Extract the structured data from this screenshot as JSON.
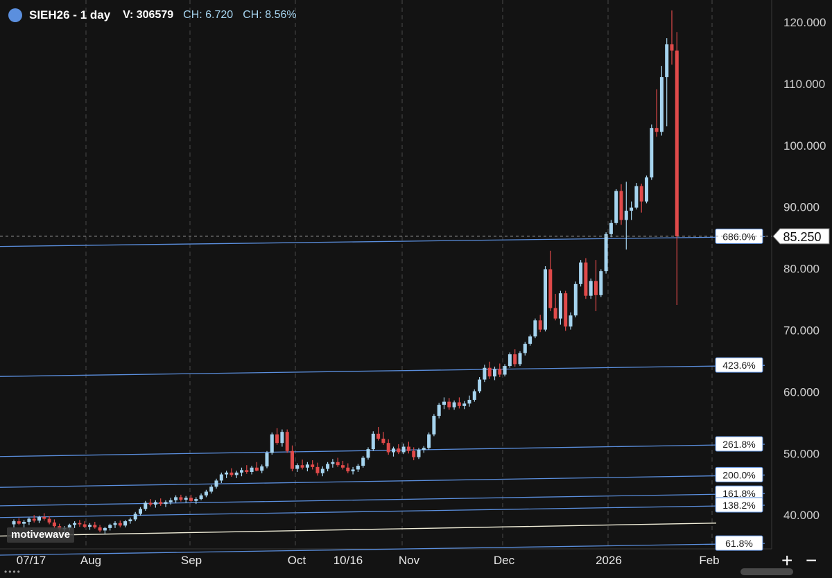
{
  "header": {
    "symbol": "SIEH26 - 1 day",
    "volume_label": "V:",
    "volume_value": "306579",
    "change_label": "CH:",
    "change_value": "6.720",
    "change_pct_label": "CH:",
    "change_pct_value": "8.56%"
  },
  "watermark": "motivewave",
  "zoom": {
    "plus": "+",
    "minus": "−"
  },
  "colors": {
    "background": "#131313",
    "up_candle": "#a6d4ef",
    "down_candle": "#e04a4a",
    "fib_line": "#5b8fde",
    "base_line": "#f1eed9",
    "grid": "#4a4a4a"
  },
  "chart_data": {
    "type": "candlestick",
    "title": "SIEH26 - 1 day",
    "y_axis": {
      "min": 34,
      "max": 123,
      "ticks": [
        "120.000",
        "110.000",
        "100.000",
        "90.000",
        "80.000",
        "70.000",
        "60.000",
        "50.000",
        "40.000"
      ],
      "position": "right"
    },
    "x_axis": {
      "ticks": [
        "07/17",
        "Aug",
        "Sep",
        "Oct",
        "10/16",
        "Nov",
        "Dec",
        "2026",
        "Feb"
      ]
    },
    "grid": true,
    "last_price": "85.250",
    "fib_levels": [
      {
        "label": "686.0%",
        "y_start": 83.6,
        "y_end": 85.2
      },
      {
        "label": "423.6%",
        "y_start": 62.5,
        "y_end": 64.3
      },
      {
        "label": "261.8%",
        "y_start": 49.5,
        "y_end": 51.5
      },
      {
        "label": "200.0%",
        "y_start": 44.5,
        "y_end": 46.5
      },
      {
        "label": "161.8%",
        "y_start": 41.5,
        "y_end": 43.5
      },
      {
        "label": "138.2%",
        "y_start": 39.6,
        "y_end": 41.6
      },
      {
        "label": "61.8%",
        "y_start": 33.5,
        "y_end": 35.4
      }
    ],
    "base_line": {
      "y_start": 36.6,
      "y_end": 38.7
    },
    "candles": [
      [
        38.5,
        39.3,
        38.0,
        39.0
      ],
      [
        39.0,
        39.5,
        38.4,
        38.6
      ],
      [
        38.6,
        39.2,
        38.0,
        38.9
      ],
      [
        38.9,
        39.6,
        38.4,
        39.4
      ],
      [
        39.4,
        40.0,
        38.8,
        39.1
      ],
      [
        39.1,
        39.9,
        38.7,
        39.7
      ],
      [
        39.7,
        40.3,
        39.1,
        39.4
      ],
      [
        39.4,
        39.8,
        38.5,
        38.8
      ],
      [
        38.8,
        39.3,
        37.9,
        38.2
      ],
      [
        38.2,
        38.6,
        37.4,
        37.7
      ],
      [
        37.7,
        38.2,
        37.1,
        37.9
      ],
      [
        37.9,
        38.6,
        37.5,
        38.4
      ],
      [
        38.4,
        39.0,
        37.9,
        38.7
      ],
      [
        38.7,
        39.2,
        38.1,
        38.5
      ],
      [
        38.5,
        39.0,
        37.9,
        38.1
      ],
      [
        38.1,
        38.7,
        37.6,
        38.4
      ],
      [
        38.4,
        38.9,
        37.8,
        38.0
      ],
      [
        38.0,
        38.4,
        37.2,
        37.5
      ],
      [
        37.5,
        38.1,
        37.0,
        37.9
      ],
      [
        37.9,
        38.6,
        37.5,
        38.4
      ],
      [
        38.4,
        39.0,
        37.9,
        38.7
      ],
      [
        38.7,
        39.1,
        38.0,
        38.3
      ],
      [
        38.3,
        39.2,
        38.0,
        39.0
      ],
      [
        39.0,
        39.6,
        38.6,
        39.3
      ],
      [
        39.3,
        40.5,
        39.0,
        40.2
      ],
      [
        40.2,
        41.3,
        39.9,
        41.0
      ],
      [
        41.0,
        42.3,
        40.7,
        42.0
      ],
      [
        42.0,
        42.6,
        41.4,
        41.7
      ],
      [
        41.7,
        42.4,
        41.2,
        42.1
      ],
      [
        42.1,
        42.7,
        41.5,
        41.8
      ],
      [
        41.8,
        42.4,
        41.3,
        42.1
      ],
      [
        42.1,
        42.8,
        41.7,
        42.4
      ],
      [
        42.4,
        43.2,
        42.0,
        42.9
      ],
      [
        42.9,
        43.3,
        42.2,
        42.5
      ],
      [
        42.5,
        43.1,
        42.0,
        42.8
      ],
      [
        42.8,
        43.3,
        42.1,
        42.3
      ],
      [
        42.3,
        42.9,
        41.8,
        42.6
      ],
      [
        42.6,
        43.5,
        42.4,
        43.2
      ],
      [
        43.2,
        44.1,
        42.9,
        43.8
      ],
      [
        43.8,
        44.9,
        43.5,
        44.6
      ],
      [
        44.6,
        45.9,
        44.3,
        45.6
      ],
      [
        45.6,
        46.9,
        45.2,
        46.6
      ],
      [
        46.6,
        47.2,
        46.0,
        46.9
      ],
      [
        46.9,
        47.6,
        46.2,
        46.5
      ],
      [
        46.5,
        47.2,
        46.0,
        46.9
      ],
      [
        46.9,
        47.7,
        46.3,
        47.3
      ],
      [
        47.3,
        48.1,
        46.7,
        47.0
      ],
      [
        47.0,
        48.0,
        46.6,
        47.7
      ],
      [
        47.7,
        48.6,
        47.1,
        47.2
      ],
      [
        47.2,
        48.2,
        46.8,
        47.9
      ],
      [
        47.9,
        50.4,
        47.6,
        50.1
      ],
      [
        50.1,
        53.4,
        49.8,
        53.1
      ],
      [
        53.1,
        54.1,
        51.4,
        51.7
      ],
      [
        51.7,
        53.9,
        51.1,
        53.5
      ],
      [
        53.5,
        53.9,
        50.1,
        50.4
      ],
      [
        50.4,
        51.3,
        47.1,
        47.5
      ],
      [
        47.5,
        48.4,
        47.0,
        48.1
      ],
      [
        48.1,
        49.0,
        47.4,
        47.7
      ],
      [
        47.7,
        48.6,
        47.1,
        48.2
      ],
      [
        48.2,
        48.9,
        47.4,
        47.8
      ],
      [
        47.8,
        48.5,
        46.4,
        46.8
      ],
      [
        46.8,
        47.9,
        46.3,
        47.5
      ],
      [
        47.5,
        48.6,
        47.1,
        48.3
      ],
      [
        48.3,
        49.1,
        47.7,
        48.6
      ],
      [
        48.6,
        49.3,
        47.8,
        48.1
      ],
      [
        48.1,
        48.8,
        47.4,
        47.7
      ],
      [
        47.7,
        48.4,
        46.8,
        47.1
      ],
      [
        47.1,
        47.8,
        46.6,
        47.4
      ],
      [
        47.4,
        48.3,
        47.0,
        48.0
      ],
      [
        48.0,
        49.6,
        47.7,
        49.3
      ],
      [
        49.3,
        51.0,
        49.0,
        50.7
      ],
      [
        50.7,
        53.6,
        50.4,
        53.2
      ],
      [
        53.2,
        54.3,
        52.1,
        52.4
      ],
      [
        52.4,
        53.5,
        51.4,
        51.7
      ],
      [
        51.7,
        52.3,
        49.8,
        50.2
      ],
      [
        50.2,
        51.1,
        49.5,
        50.8
      ],
      [
        50.8,
        51.5,
        49.9,
        50.2
      ],
      [
        50.2,
        51.6,
        49.9,
        51.1
      ],
      [
        51.1,
        51.9,
        50.0,
        50.4
      ],
      [
        50.4,
        51.0,
        48.9,
        49.4
      ],
      [
        49.4,
        50.9,
        49.1,
        50.6
      ],
      [
        50.6,
        51.2,
        50.1,
        50.9
      ],
      [
        50.9,
        53.4,
        50.6,
        53.1
      ],
      [
        53.1,
        56.4,
        52.8,
        56.1
      ],
      [
        56.1,
        58.2,
        55.7,
        57.9
      ],
      [
        57.9,
        59.1,
        57.2,
        58.4
      ],
      [
        58.4,
        59.0,
        57.1,
        57.5
      ],
      [
        57.5,
        58.6,
        57.1,
        58.3
      ],
      [
        58.3,
        59.1,
        57.3,
        57.7
      ],
      [
        57.7,
        58.5,
        57.2,
        58.1
      ],
      [
        58.1,
        59.4,
        57.6,
        58.7
      ],
      [
        58.7,
        60.4,
        58.4,
        60.1
      ],
      [
        60.1,
        62.4,
        59.8,
        62.0
      ],
      [
        62.0,
        64.4,
        61.6,
        63.9
      ],
      [
        63.9,
        64.9,
        62.1,
        62.5
      ],
      [
        62.5,
        64.1,
        61.9,
        63.7
      ],
      [
        63.7,
        64.6,
        62.4,
        62.8
      ],
      [
        62.8,
        64.5,
        62.5,
        64.2
      ],
      [
        64.2,
        66.4,
        63.9,
        66.1
      ],
      [
        66.1,
        66.9,
        64.1,
        64.5
      ],
      [
        64.5,
        66.6,
        64.2,
        66.3
      ],
      [
        66.3,
        68.1,
        65.9,
        67.8
      ],
      [
        67.8,
        69.3,
        67.5,
        69.0
      ],
      [
        69.0,
        71.9,
        68.7,
        71.6
      ],
      [
        71.6,
        72.5,
        69.7,
        70.1
      ],
      [
        70.1,
        80.4,
        69.8,
        79.9
      ],
      [
        79.9,
        82.9,
        73.1,
        73.6
      ],
      [
        73.6,
        75.9,
        71.6,
        71.9
      ],
      [
        71.9,
        76.4,
        70.9,
        76.0
      ],
      [
        76.0,
        76.4,
        69.9,
        70.6
      ],
      [
        70.6,
        72.9,
        70.1,
        72.4
      ],
      [
        72.4,
        77.9,
        72.1,
        77.5
      ],
      [
        77.5,
        81.4,
        77.1,
        81.0
      ],
      [
        81.0,
        81.7,
        75.1,
        75.6
      ],
      [
        75.6,
        78.4,
        75.1,
        78.0
      ],
      [
        78.0,
        81.4,
        73.1,
        75.7
      ],
      [
        75.7,
        79.9,
        75.4,
        79.6
      ],
      [
        79.6,
        85.9,
        79.2,
        85.6
      ],
      [
        85.6,
        87.9,
        85.1,
        87.4
      ],
      [
        87.4,
        92.9,
        87.1,
        92.6
      ],
      [
        92.6,
        93.7,
        87.1,
        87.9
      ],
      [
        87.9,
        94.1,
        83.1,
        89.4
      ],
      [
        89.4,
        90.9,
        87.9,
        89.9
      ],
      [
        89.9,
        93.9,
        89.6,
        93.4
      ],
      [
        93.4,
        93.8,
        89.1,
        90.9
      ],
      [
        90.9,
        95.1,
        90.6,
        94.8
      ],
      [
        94.8,
        103.4,
        94.4,
        102.8
      ],
      [
        102.8,
        109.1,
        101.4,
        102.2
      ],
      [
        102.2,
        112.9,
        101.6,
        111.1
      ],
      [
        111.1,
        117.4,
        103.1,
        116.4
      ],
      [
        116.4,
        121.9,
        113.1,
        115.4
      ],
      [
        115.4,
        118.4,
        74.1,
        85.25
      ]
    ]
  }
}
